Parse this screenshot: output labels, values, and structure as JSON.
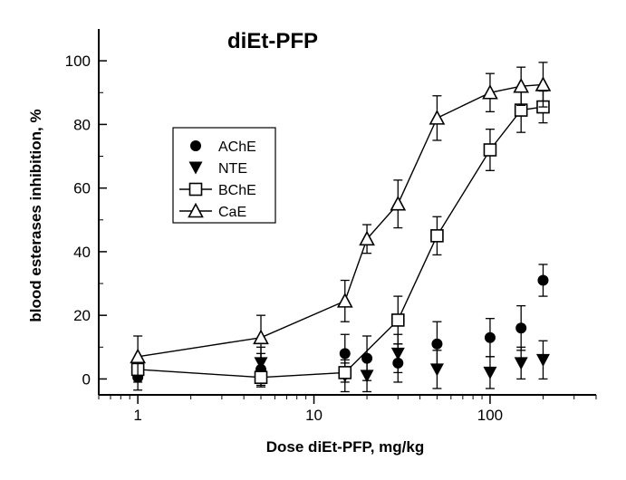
{
  "chart_data": {
    "type": "scatter",
    "title": "diEt-PFP",
    "xlabel": "Dose diEt-PFP, mg/kg",
    "ylabel": "blood esterases inhibition, %",
    "xscale": "log",
    "xlim": [
      0.6,
      400
    ],
    "ylim": [
      -5,
      110
    ],
    "xticks": [
      1,
      10,
      100
    ],
    "xtick_labels": [
      "1",
      "10",
      "100"
    ],
    "yticks": [
      0,
      20,
      40,
      60,
      80,
      100
    ],
    "ytick_labels": [
      "0",
      "20",
      "40",
      "60",
      "80",
      "100"
    ],
    "grid": false,
    "legend_position": "upper-left",
    "series": [
      {
        "name": "AChE",
        "marker": "filled-circle",
        "line": false,
        "x": [
          1,
          5,
          15,
          20,
          30,
          50,
          100,
          150,
          200
        ],
        "y": [
          0.5,
          3,
          8,
          6.5,
          5,
          11,
          13,
          16,
          31
        ],
        "err": [
          4,
          5,
          6,
          7,
          6,
          7,
          6,
          7,
          5
        ]
      },
      {
        "name": "NTE",
        "marker": "filled-triangle-down",
        "line": false,
        "x": [
          1,
          5,
          15,
          20,
          30,
          50,
          100,
          150,
          200
        ],
        "y": [
          2,
          5,
          1,
          1,
          8,
          3,
          2,
          5,
          6
        ],
        "err": [
          3,
          5,
          5,
          5,
          6,
          6,
          5,
          5,
          6
        ]
      },
      {
        "name": "BChE",
        "marker": "open-square",
        "line": true,
        "x": [
          1,
          5,
          15,
          30,
          50,
          100,
          150,
          200
        ],
        "y": [
          3,
          0.5,
          2,
          18.5,
          45,
          72,
          84.5,
          85.5
        ],
        "err": [
          2,
          3,
          3,
          7.5,
          6,
          6.5,
          7,
          5
        ]
      },
      {
        "name": "CaE",
        "marker": "open-triangle-up",
        "line": true,
        "x": [
          1,
          5,
          15,
          20,
          30,
          50,
          100,
          150,
          200
        ],
        "y": [
          7,
          13,
          24.5,
          44,
          55,
          82,
          90,
          92,
          92.5
        ],
        "err": [
          6.5,
          7,
          6.5,
          4.5,
          7.5,
          7,
          6,
          6,
          7
        ]
      }
    ]
  }
}
